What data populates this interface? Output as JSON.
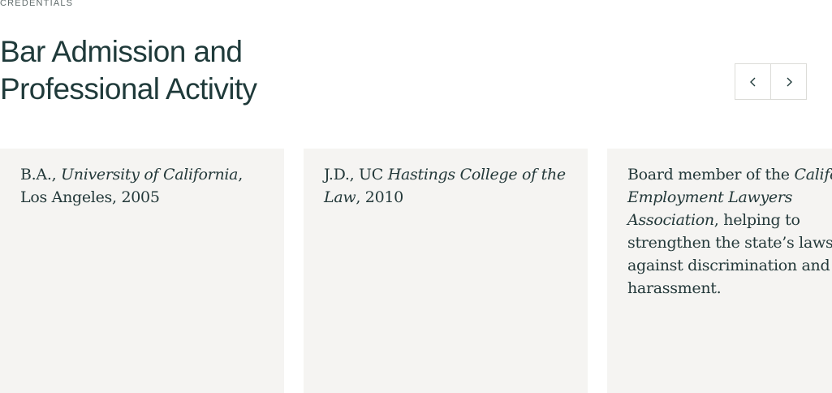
{
  "section": {
    "eyebrow": "CREDENTIALS",
    "title_line1": "Bar Admission and",
    "title_line2": "Professional Activity"
  },
  "carousel": {
    "prev_icon": "chevron-left-icon",
    "next_icon": "chevron-right-icon",
    "cards": [
      {
        "part1": "B.A., ",
        "part2_italic": "University of California",
        "part3": ", Los Angeles, 2005"
      },
      {
        "part1": "J.D., UC ",
        "part2_italic": "Hastings College of the Law",
        "part3": ", 2010"
      },
      {
        "part1": "Board member of the ",
        "part2_italic": "California Employment Lawyers Association",
        "part3": ", helping to strengthen the state’s laws against discrimination and harassment."
      }
    ]
  },
  "colors": {
    "heading": "#1f3a3a",
    "card_bg": "#f5f4f2",
    "card_text": "#24393a",
    "border": "#dcdcd8"
  }
}
